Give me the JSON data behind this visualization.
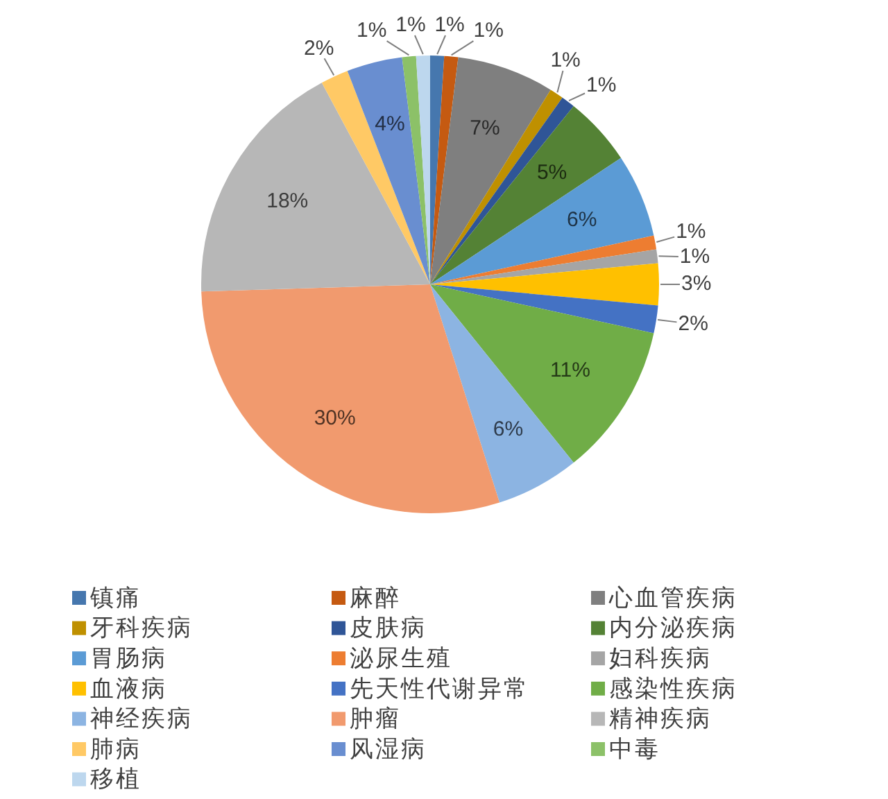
{
  "chart_data": {
    "type": "pie",
    "categories": [
      "镇痛",
      "麻醉",
      "心血管疾病",
      "牙科疾病",
      "皮肤病",
      "内分泌疾病",
      "胃肠病",
      "泌尿生殖",
      "妇科疾病",
      "血液病",
      "先天性代谢异常",
      "感染性疾病",
      "神经疾病",
      "肿瘤",
      "精神疾病",
      "肺病",
      "风湿病",
      "中毒",
      "移植"
    ],
    "values": [
      1,
      1,
      7,
      1,
      1,
      5,
      6,
      1,
      1,
      3,
      2,
      11,
      6,
      30,
      18,
      2,
      4,
      1,
      1
    ],
    "colors": [
      "#4677ae",
      "#c55a11",
      "#7f7f7f",
      "#bf9000",
      "#2f5597",
      "#548235",
      "#5b9bd5",
      "#ed7d31",
      "#a5a5a5",
      "#ffc000",
      "#4472c4",
      "#70ad47",
      "#8cb4e2",
      "#f19a6e",
      "#b7b7b7",
      "#ffc965",
      "#698ed0",
      "#8cc168",
      "#bdd7ee"
    ],
    "value_labels": [
      "1%",
      "1%",
      "7%",
      "1%",
      "1%",
      "5%",
      "6%",
      "1%",
      "1%",
      "3%",
      "2%",
      "11%",
      "6%",
      "30%",
      "18%",
      "2%",
      "4%",
      "1%",
      "1%"
    ],
    "legend": "bottom"
  }
}
